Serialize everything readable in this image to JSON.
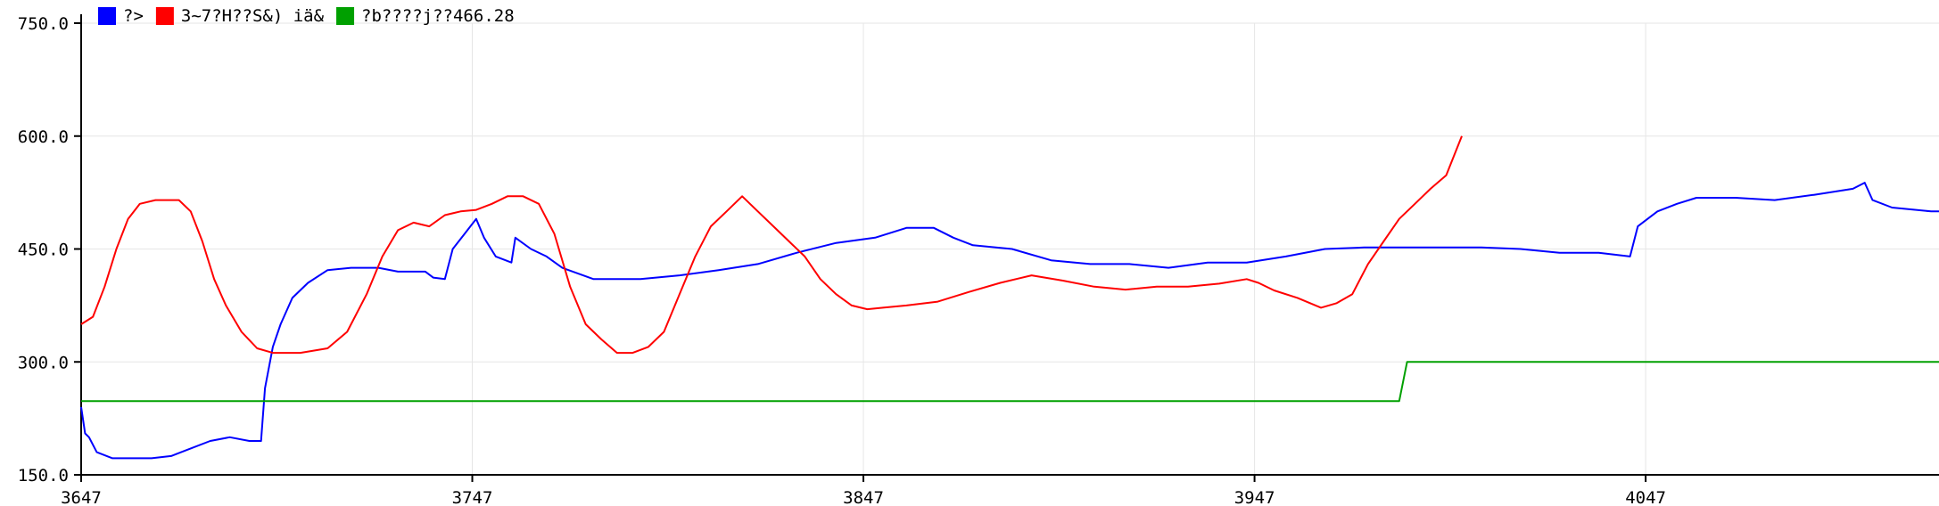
{
  "chart_data": {
    "type": "line",
    "title": "",
    "xlabel": "",
    "ylabel": "",
    "xlim": [
      3647,
      4122
    ],
    "ylim": [
      150,
      750
    ],
    "grid": true,
    "legend_position": "top-left",
    "x_ticks": [
      "3647",
      "3747",
      "3847",
      "3947",
      "4047"
    ],
    "y_ticks": [
      "150.0",
      "300.0",
      "450.0",
      "600.0",
      "750.0"
    ],
    "series": [
      {
        "name": "?>",
        "color": "#0000ff",
        "points": [
          [
            3647,
            240
          ],
          [
            3648,
            205
          ],
          [
            3649,
            200
          ],
          [
            3651,
            180
          ],
          [
            3655,
            172
          ],
          [
            3665,
            172
          ],
          [
            3670,
            175
          ],
          [
            3675,
            185
          ],
          [
            3680,
            195
          ],
          [
            3685,
            200
          ],
          [
            3690,
            195
          ],
          [
            3693,
            195
          ],
          [
            3694,
            265
          ],
          [
            3696,
            320
          ],
          [
            3698,
            350
          ],
          [
            3701,
            385
          ],
          [
            3705,
            405
          ],
          [
            3710,
            422
          ],
          [
            3716,
            425
          ],
          [
            3723,
            425
          ],
          [
            3728,
            420
          ],
          [
            3735,
            420
          ],
          [
            3737,
            412
          ],
          [
            3740,
            410
          ],
          [
            3742,
            450
          ],
          [
            3745,
            470
          ],
          [
            3748,
            490
          ],
          [
            3750,
            465
          ],
          [
            3753,
            440
          ],
          [
            3757,
            432
          ],
          [
            3758,
            465
          ],
          [
            3762,
            450
          ],
          [
            3766,
            440
          ],
          [
            3770,
            425
          ],
          [
            3778,
            410
          ],
          [
            3790,
            410
          ],
          [
            3800,
            415
          ],
          [
            3810,
            422
          ],
          [
            3820,
            430
          ],
          [
            3830,
            445
          ],
          [
            3840,
            458
          ],
          [
            3850,
            465
          ],
          [
            3858,
            478
          ],
          [
            3865,
            478
          ],
          [
            3870,
            465
          ],
          [
            3875,
            455
          ],
          [
            3885,
            450
          ],
          [
            3895,
            435
          ],
          [
            3905,
            430
          ],
          [
            3915,
            430
          ],
          [
            3925,
            425
          ],
          [
            3935,
            432
          ],
          [
            3945,
            432
          ],
          [
            3955,
            440
          ],
          [
            3965,
            450
          ],
          [
            3975,
            452
          ],
          [
            3985,
            452
          ],
          [
            3995,
            452
          ],
          [
            4005,
            452
          ],
          [
            4015,
            450
          ],
          [
            4025,
            445
          ],
          [
            4035,
            445
          ],
          [
            4043,
            440
          ],
          [
            4045,
            480
          ],
          [
            4050,
            500
          ],
          [
            4055,
            510
          ],
          [
            4060,
            518
          ],
          [
            4070,
            518
          ],
          [
            4080,
            515
          ],
          [
            4090,
            522
          ],
          [
            4100,
            530
          ],
          [
            4103,
            538
          ],
          [
            4105,
            515
          ],
          [
            4110,
            505
          ],
          [
            4120,
            500
          ],
          [
            4122,
            500
          ]
        ]
      },
      {
        "name": "3~7?H??S&) iä&",
        "color": "#ff0000",
        "points": [
          [
            3647,
            350
          ],
          [
            3650,
            360
          ],
          [
            3653,
            400
          ],
          [
            3656,
            450
          ],
          [
            3659,
            490
          ],
          [
            3662,
            510
          ],
          [
            3666,
            515
          ],
          [
            3672,
            515
          ],
          [
            3675,
            500
          ],
          [
            3678,
            460
          ],
          [
            3681,
            410
          ],
          [
            3684,
            375
          ],
          [
            3688,
            340
          ],
          [
            3692,
            318
          ],
          [
            3696,
            312
          ],
          [
            3703,
            312
          ],
          [
            3710,
            318
          ],
          [
            3715,
            340
          ],
          [
            3720,
            390
          ],
          [
            3724,
            440
          ],
          [
            3728,
            475
          ],
          [
            3732,
            485
          ],
          [
            3736,
            480
          ],
          [
            3740,
            495
          ],
          [
            3744,
            500
          ],
          [
            3748,
            502
          ],
          [
            3752,
            510
          ],
          [
            3756,
            520
          ],
          [
            3760,
            520
          ],
          [
            3764,
            510
          ],
          [
            3768,
            470
          ],
          [
            3772,
            400
          ],
          [
            3776,
            350
          ],
          [
            3780,
            330
          ],
          [
            3784,
            312
          ],
          [
            3788,
            312
          ],
          [
            3792,
            320
          ],
          [
            3796,
            340
          ],
          [
            3800,
            390
          ],
          [
            3804,
            440
          ],
          [
            3808,
            480
          ],
          [
            3812,
            500
          ],
          [
            3816,
            520
          ],
          [
            3820,
            500
          ],
          [
            3824,
            480
          ],
          [
            3828,
            460
          ],
          [
            3832,
            440
          ],
          [
            3836,
            410
          ],
          [
            3840,
            390
          ],
          [
            3844,
            375
          ],
          [
            3848,
            370
          ],
          [
            3852,
            372
          ],
          [
            3858,
            375
          ],
          [
            3866,
            380
          ],
          [
            3874,
            393
          ],
          [
            3882,
            405
          ],
          [
            3890,
            415
          ],
          [
            3898,
            408
          ],
          [
            3906,
            400
          ],
          [
            3914,
            396
          ],
          [
            3922,
            400
          ],
          [
            3930,
            400
          ],
          [
            3938,
            404
          ],
          [
            3945,
            410
          ],
          [
            3948,
            405
          ],
          [
            3952,
            395
          ],
          [
            3958,
            385
          ],
          [
            3964,
            372
          ],
          [
            3968,
            378
          ],
          [
            3972,
            390
          ],
          [
            3976,
            430
          ],
          [
            3980,
            460
          ],
          [
            3984,
            490
          ],
          [
            3988,
            510
          ],
          [
            3992,
            530
          ],
          [
            3996,
            548
          ],
          [
            4000,
            600
          ]
        ]
      },
      {
        "name": "?b????j??466.28",
        "color": "#00a000",
        "points": [
          [
            3647,
            248
          ],
          [
            3984,
            248
          ],
          [
            3986,
            300
          ],
          [
            4122,
            300
          ]
        ]
      }
    ]
  }
}
